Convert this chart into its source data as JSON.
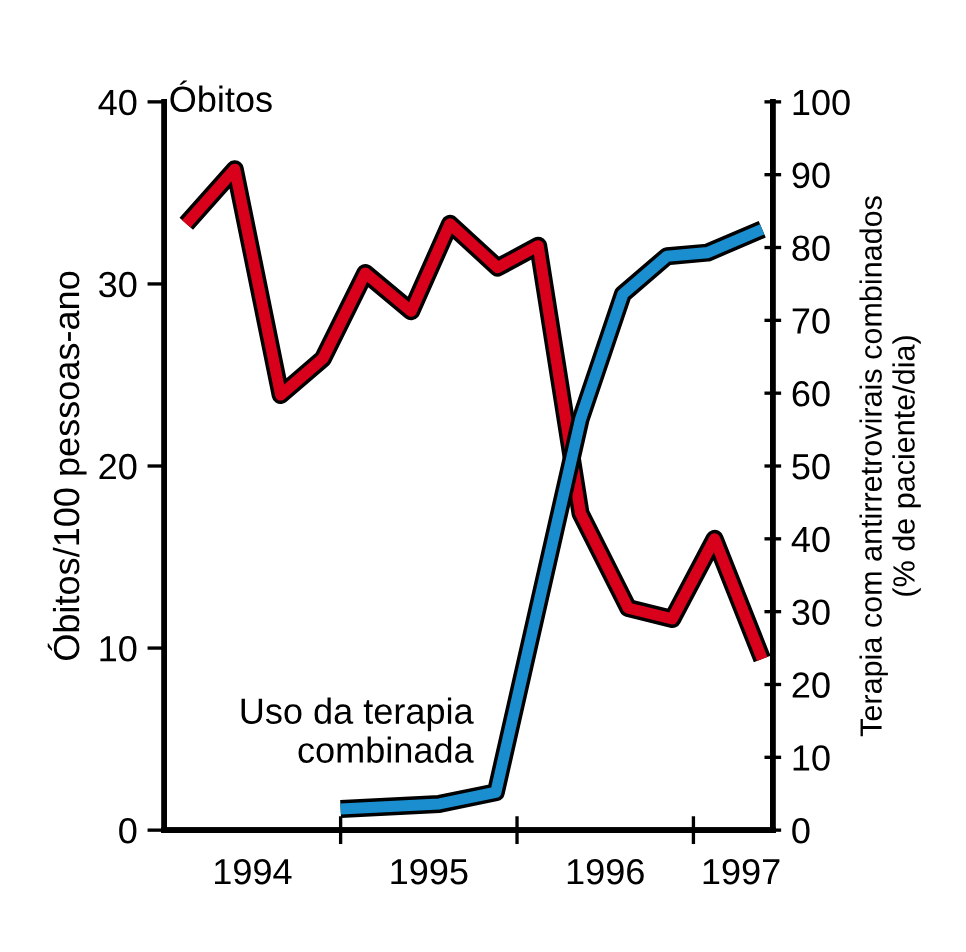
{
  "chart_data": {
    "type": "line",
    "ylabel": "Óbitos/100 pessoas-ano",
    "y2label": "Terapia com antirretrovirais combinados (% de paciente/dia)",
    "xlim": [
      1994.0,
      1997.45
    ],
    "xticks": [
      {
        "value": 1994.5,
        "label": "1994"
      },
      {
        "value": 1995,
        "label": null
      },
      {
        "value": 1995.5,
        "label": "1995"
      },
      {
        "value": 1996,
        "label": null
      },
      {
        "value": 1996.5,
        "label": "1996"
      },
      {
        "value": 1997,
        "label": null
      },
      {
        "value": 1997.27,
        "label": "1997"
      }
    ],
    "ylim": [
      0,
      40
    ],
    "yticks": [
      0,
      10,
      20,
      30,
      40
    ],
    "y2lim": [
      0,
      100
    ],
    "y2ticks": [
      0,
      10,
      20,
      30,
      40,
      50,
      60,
      70,
      80,
      90,
      100
    ],
    "grid": false,
    "legend": false,
    "marker": "none",
    "line_style": "solid",
    "series": [
      {
        "name": "Óbitos",
        "color": "#d9001b",
        "x": [
          1994.125,
          1994.4,
          1994.66,
          1994.9,
          1995.14,
          1995.4,
          1995.62,
          1995.89,
          1996.12,
          1996.36,
          1996.63,
          1996.88,
          1997.12,
          1997.39
        ],
        "values": [
          33.3,
          36.3,
          23.9,
          25.9,
          30.6,
          28.5,
          33.3,
          30.9,
          32.1,
          17.4,
          12.2,
          11.6,
          16.0,
          9.4
        ]
      },
      {
        "name": "Uso da terapia combinada",
        "color": "#1b8ecf",
        "axis": "y2",
        "x": [
          1995.0,
          1995.56,
          1995.88,
          1996.12,
          1996.36,
          1996.6,
          1996.85,
          1997.08,
          1997.39
        ],
        "values": [
          2.9,
          3.6,
          5.2,
          30.8,
          56.4,
          73.6,
          78.8,
          79.3,
          82.5
        ]
      }
    ]
  }
}
